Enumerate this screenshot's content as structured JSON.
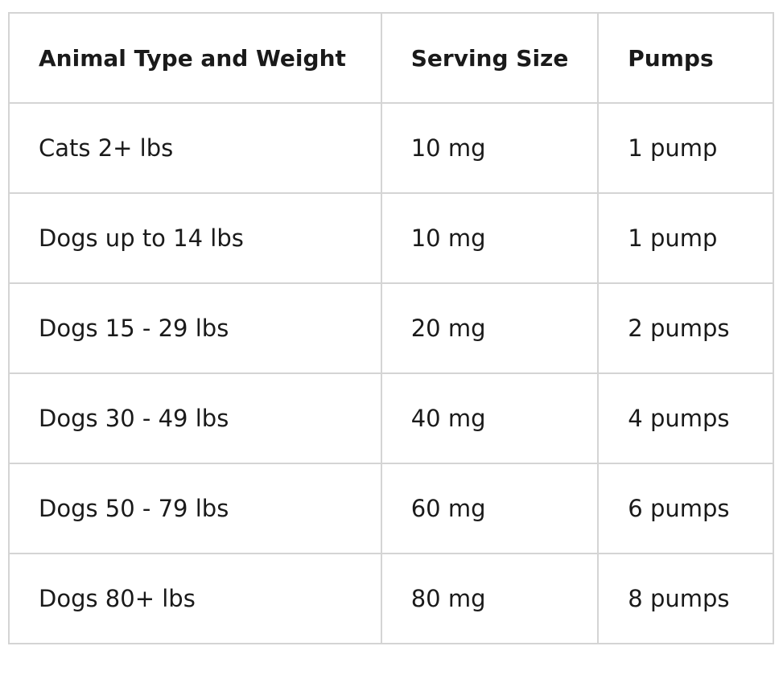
{
  "table": {
    "header": [
      "Animal Type and Weight",
      "Serving Size",
      "Pumps"
    ],
    "rows": [
      [
        "Cats 2+ lbs",
        "10 mg",
        "1 pump"
      ],
      [
        "Dogs up to 14 lbs",
        "10 mg",
        "1 pump"
      ],
      [
        "Dogs 15 - 29 lbs",
        "20 mg",
        "2 pumps"
      ],
      [
        "Dogs 30 - 49 lbs",
        "40 mg",
        "4 pumps"
      ],
      [
        "Dogs 50 - 79 lbs",
        "60 mg",
        "6 pumps"
      ],
      [
        "Dogs 80+ lbs",
        "80 mg",
        "8 pumps"
      ]
    ]
  }
}
